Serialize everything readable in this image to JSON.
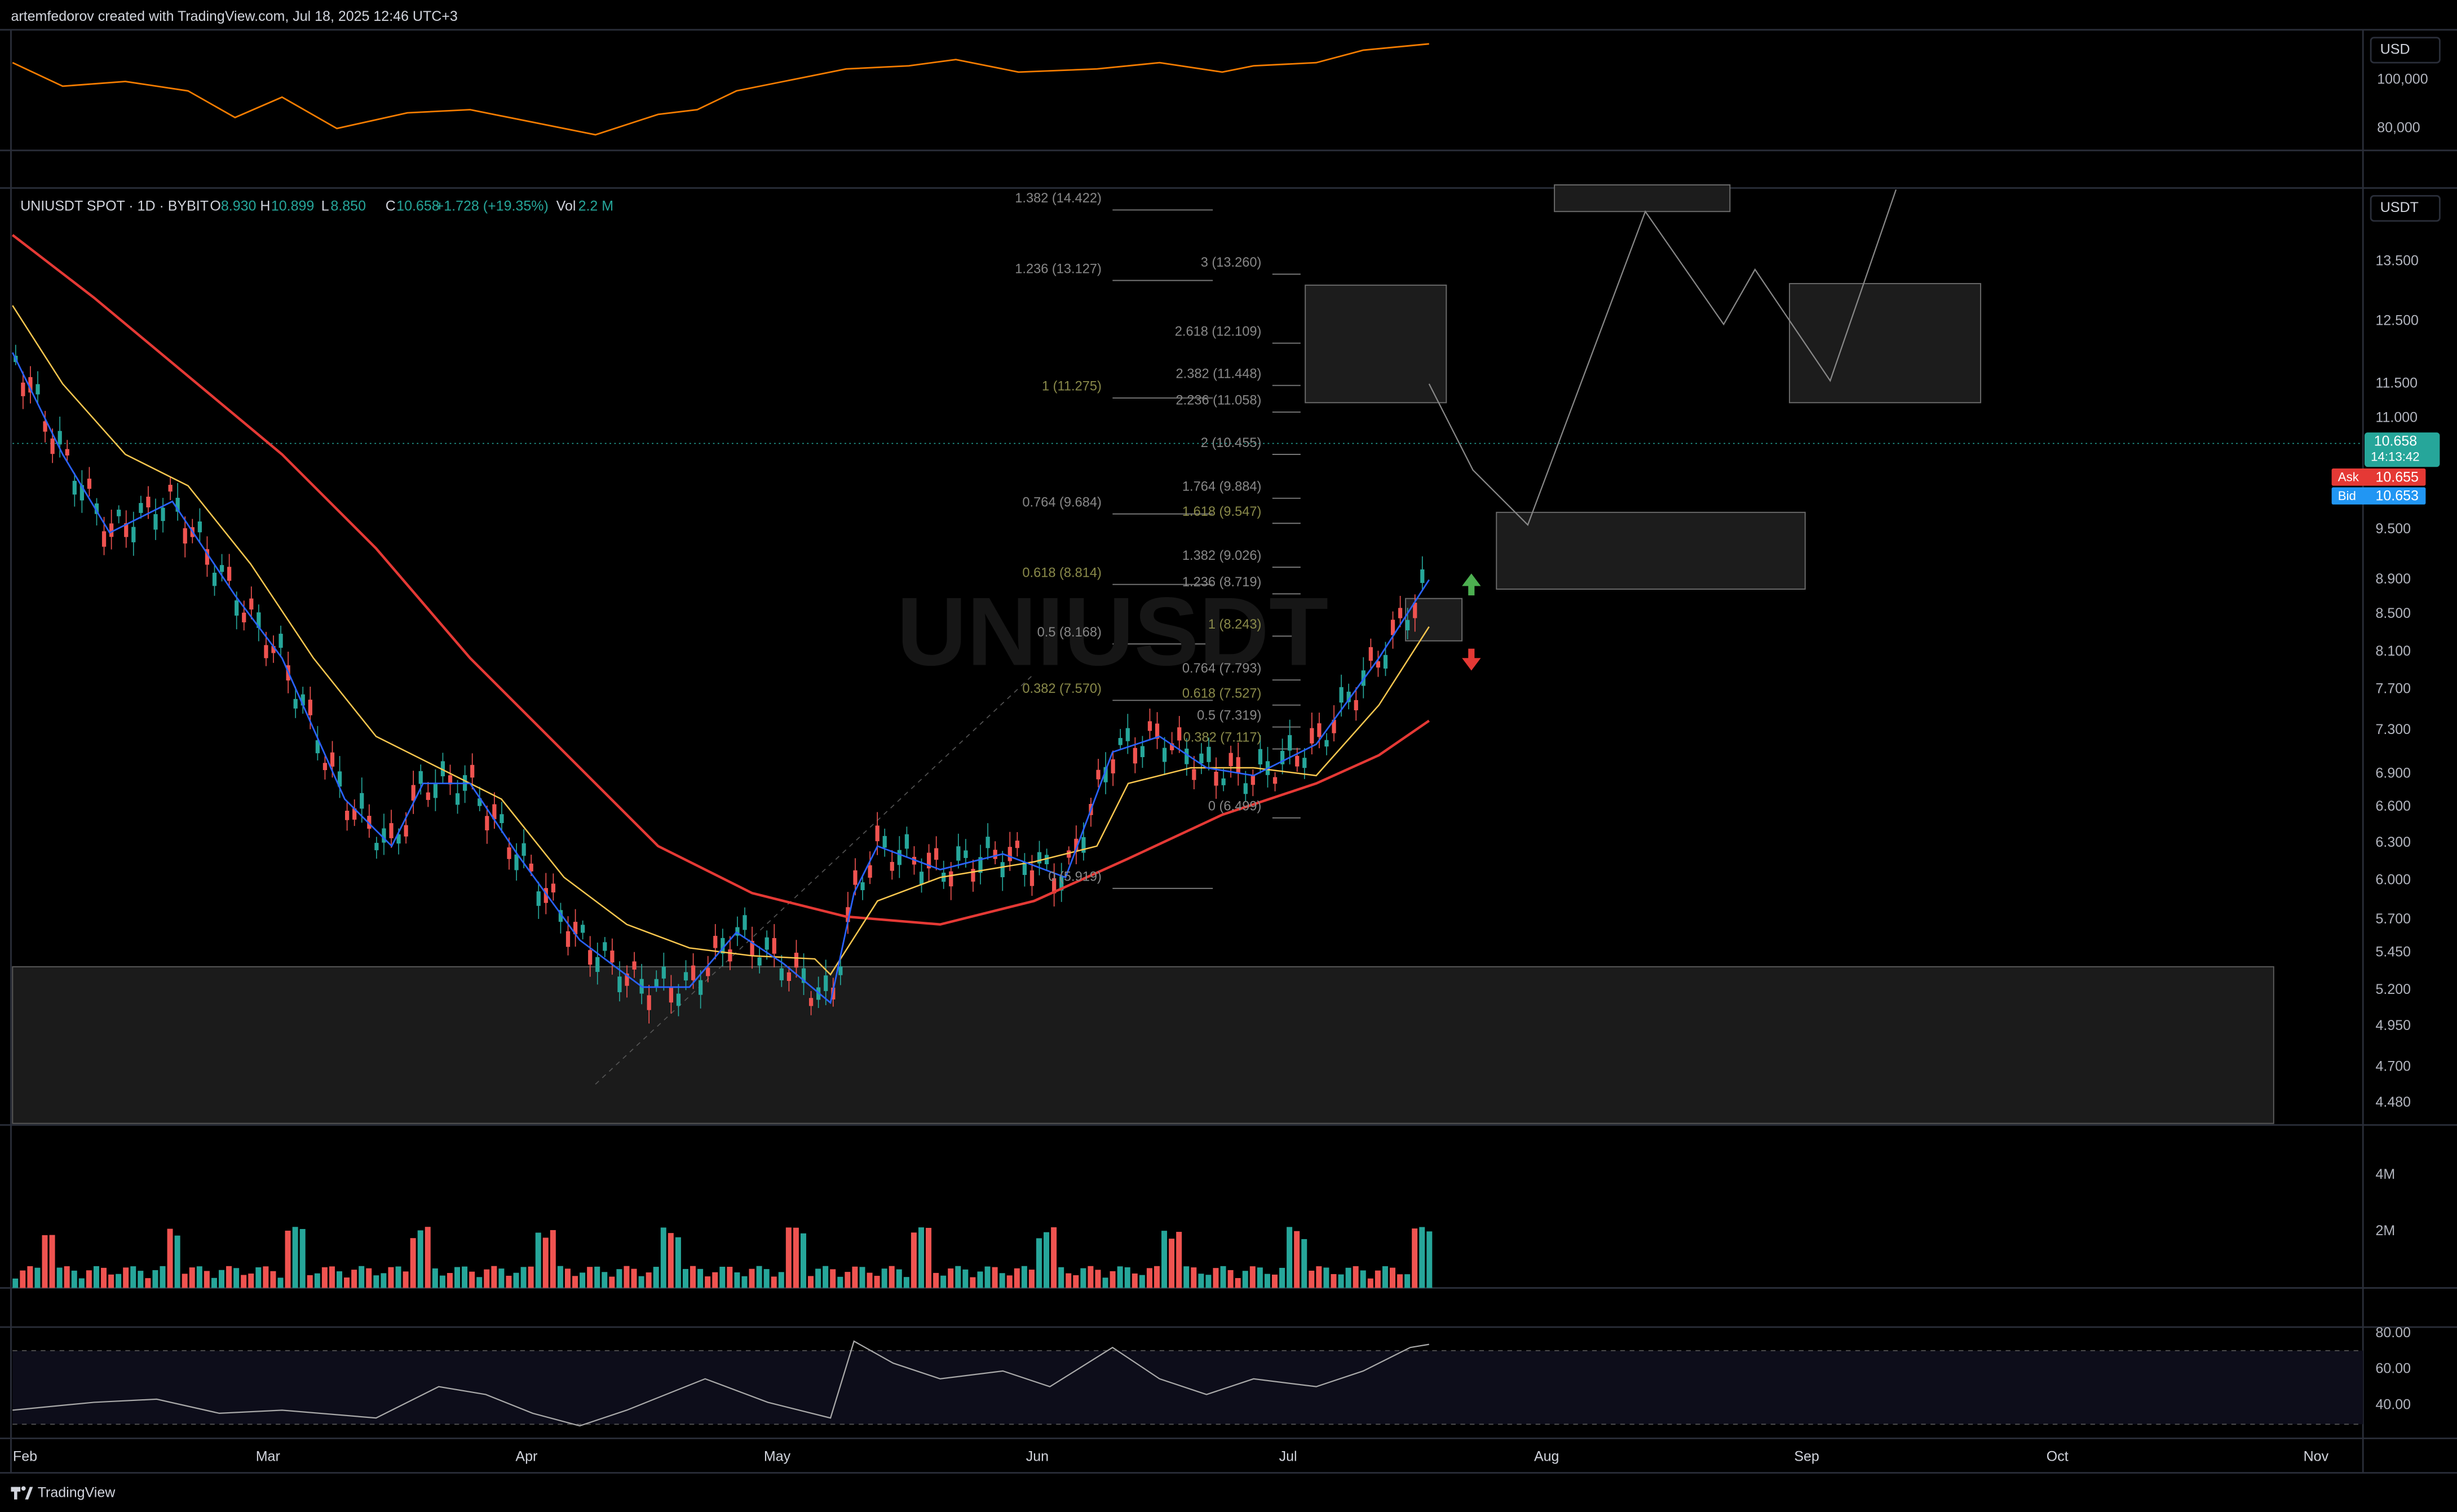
{
  "header": {
    "credit": "artemfedorov created with TradingView.com, Jul 18, 2025 12:46 UTC+3"
  },
  "top_pane": {
    "currency": "USD",
    "price_labels": [
      "100,000",
      "80,000"
    ]
  },
  "main_pane": {
    "symbol": "UNIUSDT SPOT · 1D · BYBIT",
    "ohlc": [
      {
        "label": "O",
        "value": "8.930"
      },
      {
        "label": "H",
        "value": "10.899"
      },
      {
        "label": "L",
        "value": "8.850"
      },
      {
        "label": "C",
        "value": "10.658"
      }
    ],
    "change": "+1.728 (+19.35%)",
    "volume": {
      "label": "Vol",
      "value": "2.2 M"
    },
    "currency": "USDT",
    "price_labels": [
      "13.500",
      "12.500",
      "11.500",
      "11.000",
      "9.500",
      "8.900",
      "8.500",
      "8.100",
      "7.700",
      "7.300",
      "6.900",
      "6.600",
      "6.300",
      "6.000",
      "5.700",
      "5.450",
      "5.200",
      "4.950",
      "4.700",
      "4.480"
    ],
    "last_price": "10.658",
    "countdown": "14:13:42",
    "ask": {
      "label": "Ask",
      "value": "10.655"
    },
    "bid": {
      "label": "Bid",
      "value": "10.653"
    },
    "watermark": "UNIUSDT",
    "fib_left": [
      "1.382 (14.422)",
      "1.236 (13.127)",
      "1 (11.275)",
      "0.764 (9.684)",
      "0.618 (8.814)",
      "0.5 (8.168)",
      "0.382 (7.570)",
      "0 (5.919)"
    ],
    "fib_right": [
      "3 (13.260)",
      "2.618 (12.109)",
      "2.382 (11.448)",
      "2.236 (11.058)",
      "2 (10.455)",
      "1.764 (9.884)",
      "1.618 (9.547)",
      "1.382 (9.026)",
      "1.236 (8.719)",
      "1 (8.243)",
      "0.764 (7.793)",
      "0.618 (7.527)",
      "0.5 (7.319)",
      "0.382 (7.117)",
      "0 (6.499)"
    ]
  },
  "volume_pane": {
    "labels": [
      "4M",
      "2M"
    ]
  },
  "rsi_pane": {
    "labels": [
      "80.00",
      "60.00",
      "40.00"
    ]
  },
  "time_axis": [
    "Feb",
    "Mar",
    "Apr",
    "May",
    "Jun",
    "Jul",
    "Aug",
    "Sep",
    "Oct",
    "Nov"
  ],
  "footer": {
    "brand": "TradingView"
  }
}
